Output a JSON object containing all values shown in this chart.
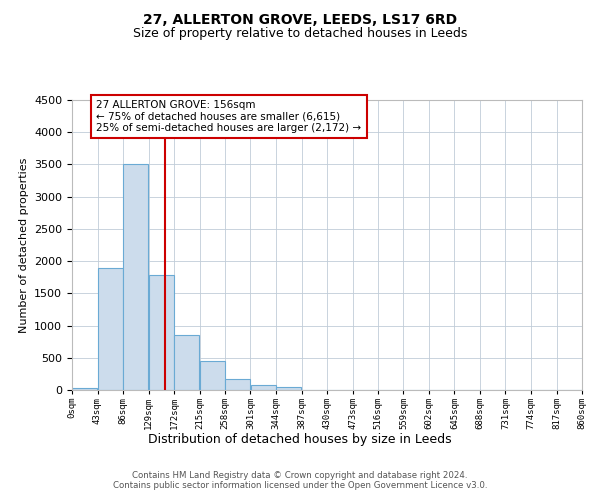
{
  "title": "27, ALLERTON GROVE, LEEDS, LS17 6RD",
  "subtitle": "Size of property relative to detached houses in Leeds",
  "xlabel": "Distribution of detached houses by size in Leeds",
  "ylabel": "Number of detached properties",
  "bin_edges": [
    0,
    43,
    86,
    129,
    172,
    215,
    258,
    301,
    344,
    387,
    430,
    473,
    516,
    559,
    602,
    645,
    688,
    731,
    774,
    817,
    860
  ],
  "bar_heights": [
    30,
    1900,
    3500,
    1780,
    850,
    450,
    175,
    85,
    40,
    0,
    0,
    0,
    0,
    0,
    0,
    0,
    0,
    0,
    0,
    0
  ],
  "bar_color": "#ccdcec",
  "bar_edge_color": "#6aaad4",
  "property_size": 156,
  "vline_color": "#cc0000",
  "annotation_line1": "27 ALLERTON GROVE: 156sqm",
  "annotation_line2": "← 75% of detached houses are smaller (6,615)",
  "annotation_line3": "25% of semi-detached houses are larger (2,172) →",
  "annotation_box_edge": "#cc0000",
  "ylim": [
    0,
    4500
  ],
  "yticks": [
    0,
    500,
    1000,
    1500,
    2000,
    2500,
    3000,
    3500,
    4000,
    4500
  ],
  "tick_labels": [
    "0sqm",
    "43sqm",
    "86sqm",
    "129sqm",
    "172sqm",
    "215sqm",
    "258sqm",
    "301sqm",
    "344sqm",
    "387sqm",
    "430sqm",
    "473sqm",
    "516sqm",
    "559sqm",
    "602sqm",
    "645sqm",
    "688sqm",
    "731sqm",
    "774sqm",
    "817sqm",
    "860sqm"
  ],
  "footer_text": "Contains HM Land Registry data © Crown copyright and database right 2024.\nContains public sector information licensed under the Open Government Licence v3.0.",
  "background_color": "#ffffff",
  "grid_color": "#c0ccd8",
  "title_fontsize": 10,
  "subtitle_fontsize": 9
}
